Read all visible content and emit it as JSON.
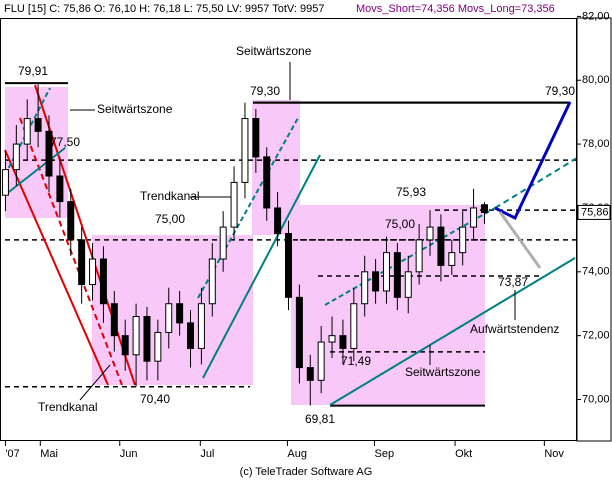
{
  "chart_data": {
    "type": "candlestick",
    "header": "FLU [15] C: 75,86 O: 76,10 H: 76,18 L: 75,50 LV: 9957 TotV: 9957",
    "header_movs": "Movs_Short=74,356 Movs_Long=73,356",
    "footer": "(c) TeleTrader Software AG",
    "x": [
      0,
      1,
      2,
      3,
      4,
      5,
      6,
      7,
      8,
      9,
      10,
      11,
      12,
      13,
      14,
      15,
      16,
      17,
      18,
      19,
      20,
      21,
      22,
      23,
      24,
      25,
      26,
      27,
      28,
      29,
      30,
      31,
      32,
      33,
      34,
      35,
      36,
      37,
      38,
      39,
      40,
      41,
      42,
      43,
      44
    ],
    "open": [
      76.4,
      77.2,
      78.0,
      78.8,
      78.4,
      77.0,
      76.2,
      75.0,
      73.6,
      74.4,
      73.0,
      72.0,
      71.4,
      72.6,
      71.2,
      72.1,
      73.0,
      72.4,
      71.6,
      73.0,
      74.4,
      75.4,
      76.8,
      78.8,
      77.6,
      76.0,
      75.2,
      73.2,
      71.0,
      70.6,
      71.8,
      72.0,
      71.6,
      73.0,
      74.0,
      73.4,
      74.6,
      73.2,
      74.0,
      75.0,
      75.4,
      74.2,
      74.6,
      75.4,
      76.1
    ],
    "high": [
      77.8,
      78.6,
      79.4,
      79.91,
      78.9,
      77.6,
      76.6,
      75.4,
      74.9,
      74.8,
      73.4,
      72.5,
      73.0,
      72.9,
      72.5,
      73.5,
      73.4,
      72.8,
      73.5,
      74.9,
      75.9,
      77.3,
      79.3,
      79.1,
      77.9,
      76.5,
      75.6,
      73.6,
      71.4,
      72.3,
      72.6,
      72.5,
      73.5,
      74.5,
      74.4,
      75.1,
      74.9,
      74.5,
      75.5,
      75.93,
      75.8,
      75.0,
      75.9,
      76.6,
      76.18
    ],
    "low": [
      75.9,
      76.7,
      77.5,
      77.9,
      76.5,
      75.7,
      74.5,
      73.0,
      73.1,
      72.4,
      71.5,
      70.9,
      70.4,
      70.6,
      70.6,
      71.6,
      72.0,
      71.0,
      71.1,
      72.6,
      74.0,
      75.0,
      76.3,
      77.1,
      75.6,
      74.8,
      72.8,
      70.5,
      69.81,
      70.2,
      71.3,
      71.1,
      71.2,
      72.6,
      73.0,
      73.0,
      72.8,
      72.7,
      73.6,
      74.5,
      73.7,
      73.9,
      74.2,
      75.0,
      75.5
    ],
    "close": [
      77.2,
      78.0,
      78.8,
      78.4,
      77.0,
      76.2,
      75.0,
      73.6,
      74.4,
      73.0,
      72.0,
      71.4,
      72.6,
      71.2,
      72.1,
      73.0,
      72.4,
      71.6,
      73.0,
      74.4,
      75.4,
      76.8,
      78.8,
      77.6,
      76.0,
      75.2,
      73.2,
      71.0,
      70.6,
      71.8,
      72.0,
      71.6,
      73.0,
      74.0,
      73.4,
      74.6,
      73.2,
      74.0,
      75.0,
      75.4,
      74.2,
      74.6,
      75.4,
      76.0,
      75.86
    ],
    "xlim": [
      -0.5,
      52.5
    ],
    "xticks": [
      {
        "value": 0,
        "label": "'07"
      },
      {
        "value": 3.2,
        "label": "Mai"
      },
      {
        "value": 10.5,
        "label": "Jun"
      },
      {
        "value": 17.9,
        "label": "Jul"
      },
      {
        "value": 25.9,
        "label": "Aug"
      },
      {
        "value": 33.9,
        "label": "Sep"
      },
      {
        "value": 41.3,
        "label": "Okt"
      },
      {
        "value": 49.5,
        "label": "Nov"
      }
    ],
    "ylim": [
      68.7,
      81.95
    ],
    "yticks": [
      {
        "value": 70,
        "label": "70,00"
      },
      {
        "value": 72,
        "label": "72,00"
      },
      {
        "value": 74,
        "label": "74,00"
      },
      {
        "value": 76,
        "label": "76,00"
      },
      {
        "value": 78,
        "label": "78,00"
      },
      {
        "value": 80,
        "label": "80,00"
      },
      {
        "value": 82,
        "label": "82,00"
      }
    ],
    "last_price": {
      "value": 75.86,
      "label": "75,86"
    },
    "levels": [
      {
        "value": 79.91,
        "label": "79,91"
      },
      {
        "value": 77.5,
        "label": "77,50"
      },
      {
        "value": 75.0,
        "label": "75,00"
      },
      {
        "value": 70.4,
        "label": "70,40"
      },
      {
        "value": 79.3,
        "label": "79,30"
      },
      {
        "value": 79.3,
        "label": "79,30"
      },
      {
        "value": 75.93,
        "label": "75,93"
      },
      {
        "value": 75.0,
        "label": "75,00"
      },
      {
        "value": 71.49,
        "label": "71,49"
      },
      {
        "value": 69.81,
        "label": "69,81"
      },
      {
        "value": 73.87,
        "label": "73,87"
      }
    ],
    "annotations": [
      "Seitwärtszone",
      "Seitwärtszone",
      "Trendkanal",
      "Trendkanal",
      "Aufwärtstendenz",
      "Seitwärtszone"
    ]
  }
}
